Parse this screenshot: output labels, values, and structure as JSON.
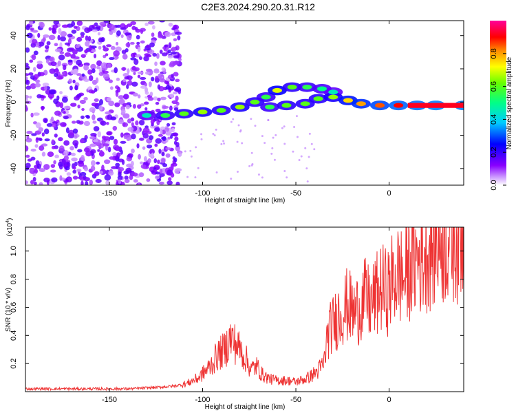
{
  "page": {
    "title": "C2E3.2024.290.20.31.R12"
  },
  "chart_data": [
    {
      "type": "heatmap",
      "title": "C2E3.2024.290.20.31.R12",
      "xlabel": "Height of straight line (km)",
      "ylabel": "Frequency (Hz)",
      "xlim": [
        -195,
        40
      ],
      "ylim": [
        -50,
        49
      ],
      "x_ticks": [
        -150,
        -100,
        -50,
        0
      ],
      "y_ticks": [
        -40,
        -20,
        0,
        20,
        40
      ],
      "colorbar": {
        "label": "Normalized spectral amplitude",
        "range": [
          0,
          1
        ],
        "ticks": [
          0.0,
          0.2,
          0.4,
          0.6,
          0.8
        ],
        "colormap": [
          "#ffffff",
          "#8800ff",
          "#0000ff",
          "#00ffff",
          "#00ff00",
          "#ffff00",
          "#ff8800",
          "#ff0000",
          "#ff00aa"
        ]
      },
      "noise_region_x": [
        -195,
        -112
      ],
      "signal_track": [
        {
          "x": -130,
          "y": -8,
          "amp": 0.45
        },
        {
          "x": -120,
          "y": -8,
          "amp": 0.55
        },
        {
          "x": -110,
          "y": -7,
          "amp": 0.6
        },
        {
          "x": -100,
          "y": -6,
          "amp": 0.65
        },
        {
          "x": -90,
          "y": -5,
          "amp": 0.6
        },
        {
          "x": -80,
          "y": -3,
          "amp": 0.65
        },
        {
          "x": -72,
          "y": 0,
          "amp": 0.6
        },
        {
          "x": -66,
          "y": 3,
          "amp": 0.55
        },
        {
          "x": -60,
          "y": 7,
          "amp": 0.7
        },
        {
          "x": -52,
          "y": 9,
          "amp": 0.6
        },
        {
          "x": -44,
          "y": 9,
          "amp": 0.55
        },
        {
          "x": -36,
          "y": 8,
          "amp": 0.5
        },
        {
          "x": -30,
          "y": 6,
          "amp": 0.45
        },
        {
          "x": -64,
          "y": -3,
          "amp": 0.55
        },
        {
          "x": -55,
          "y": -2,
          "amp": 0.6
        },
        {
          "x": -45,
          "y": -1,
          "amp": 0.6
        },
        {
          "x": -38,
          "y": 2,
          "amp": 0.6
        },
        {
          "x": -30,
          "y": 3,
          "amp": 0.65
        },
        {
          "x": -22,
          "y": 1,
          "amp": 0.75
        },
        {
          "x": -15,
          "y": -1,
          "amp": 0.8
        },
        {
          "x": -5,
          "y": -2,
          "amp": 0.85
        },
        {
          "x": 5,
          "y": -2,
          "amp": 0.9
        },
        {
          "x": 15,
          "y": -2,
          "amp": 0.92
        },
        {
          "x": 25,
          "y": -2,
          "amp": 0.95
        },
        {
          "x": 40,
          "y": -2,
          "amp": 0.95
        }
      ]
    },
    {
      "type": "line",
      "title": "",
      "xlabel": "Height of straight line (km)",
      "ylabel": "SNR (10 * v/v)",
      "y_multiplier": "(x10",
      "y_multiplier_exponent": "4",
      "y_multiplier_close": ")",
      "xlim": [
        -195,
        40
      ],
      "ylim": [
        0,
        1.17
      ],
      "x_ticks": [
        -150,
        -100,
        -50,
        0
      ],
      "y_ticks": [
        0.2,
        0.4,
        0.6,
        0.8,
        1.0
      ],
      "series": [
        {
          "color": "#ee3333",
          "x": [
            -195,
            -180,
            -160,
            -140,
            -125,
            -115,
            -108,
            -102,
            -96,
            -92,
            -88,
            -85,
            -83,
            -80,
            -77,
            -74,
            -71,
            -68,
            -64,
            -60,
            -55,
            -50,
            -45,
            -42,
            -38,
            -35,
            -33,
            -31,
            -29,
            -27,
            -25,
            -22,
            -19,
            -16,
            -13,
            -10,
            -7,
            -4,
            -1,
            2,
            5,
            8,
            11,
            13,
            16,
            20,
            24,
            28,
            32,
            36,
            40
          ],
          "y": [
            0.02,
            0.02,
            0.02,
            0.02,
            0.03,
            0.04,
            0.06,
            0.1,
            0.18,
            0.26,
            0.3,
            0.38,
            0.35,
            0.3,
            0.24,
            0.16,
            0.18,
            0.12,
            0.09,
            0.08,
            0.08,
            0.07,
            0.09,
            0.11,
            0.15,
            0.2,
            0.4,
            0.46,
            0.5,
            0.55,
            0.58,
            0.62,
            0.56,
            0.6,
            0.66,
            0.62,
            0.68,
            0.74,
            0.7,
            0.8,
            0.84,
            0.8,
            0.9,
            0.92,
            0.95,
            1.0,
            1.06,
            1.08,
            1.1,
            1.12,
            1.12
          ]
        }
      ]
    }
  ]
}
